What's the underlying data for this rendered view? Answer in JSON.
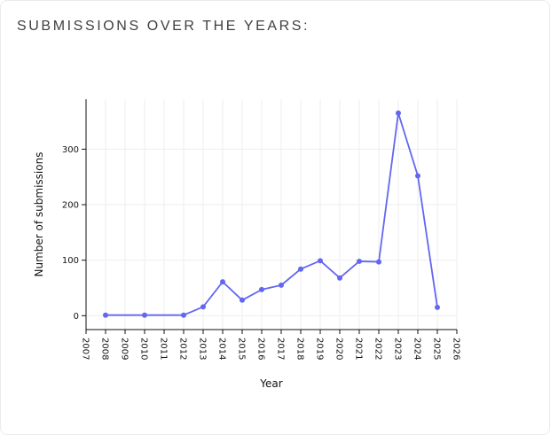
{
  "header": {
    "title": "SUBMISSIONS OVER THE YEARS:"
  },
  "chart_data": {
    "type": "line",
    "title": "",
    "xlabel": "Year",
    "ylabel": "Number of submissions",
    "x_tick_labels": [
      "2007",
      "2008",
      "2009",
      "2010",
      "2011",
      "2012",
      "2013",
      "2014",
      "2015",
      "2016",
      "2017",
      "2018",
      "2019",
      "2020",
      "2021",
      "2022",
      "2023",
      "2024",
      "2025",
      "2026"
    ],
    "y_tick_labels": [
      "0",
      "100",
      "200",
      "300"
    ],
    "y_ticks": [
      0,
      100,
      200,
      300
    ],
    "xlim": [
      2007,
      2026
    ],
    "ylim": [
      -25,
      390
    ],
    "grid": true,
    "series": [
      {
        "color": "#6366f1",
        "x": [
          2008,
          2010,
          2012,
          2013,
          2014,
          2015,
          2016,
          2017,
          2018,
          2019,
          2020,
          2021,
          2022,
          2023,
          2024,
          2025
        ],
        "y": [
          1,
          1,
          1,
          16,
          61,
          28,
          47,
          55,
          84,
          99,
          68,
          98,
          97,
          365,
          252,
          15
        ]
      }
    ]
  }
}
